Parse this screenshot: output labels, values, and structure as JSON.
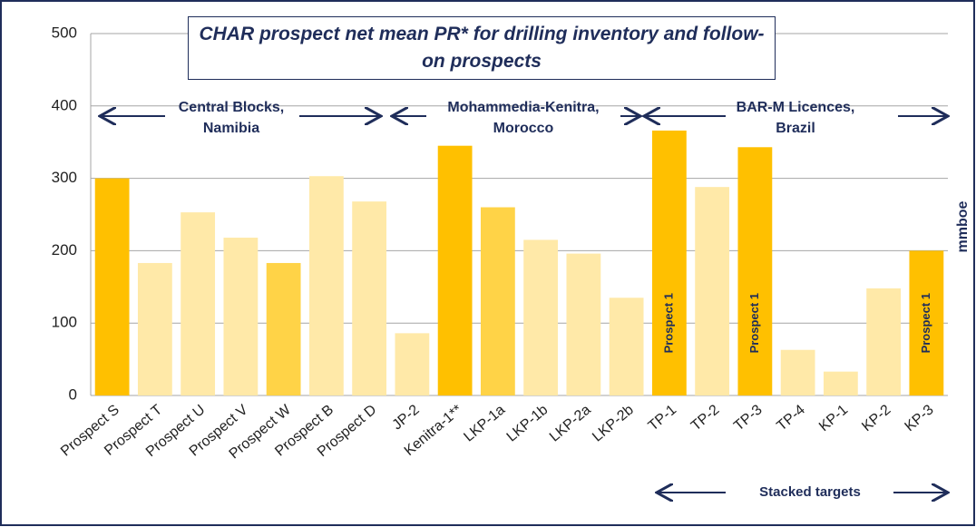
{
  "chart_data": {
    "type": "bar",
    "title": "CHAR prospect net mean PR* for drilling inventory and follow-on prospects",
    "y_label": "mmboe",
    "categories": [
      "Prospect S",
      "Prospect T",
      "Prospect U",
      "Prospect V",
      "Prospect W",
      "Prospect B",
      "Prospect D",
      "JP-2",
      "Kenitra-1**",
      "LKP-1a",
      "LKP-1b",
      "LKP-2a",
      "LKP-2b",
      "TP-1",
      "TP-2",
      "TP-3",
      "TP-4",
      "KP-1",
      "KP-2",
      "KP-3"
    ],
    "values": [
      300,
      183,
      253,
      218,
      183,
      303,
      268,
      86,
      345,
      260,
      215,
      196,
      135,
      366,
      288,
      343,
      63,
      33,
      148,
      200
    ],
    "colors": [
      "#ffc000",
      "#ffe9a8",
      "#ffe9a8",
      "#ffe9a8",
      "#ffd347",
      "#ffe9a8",
      "#ffe9a8",
      "#ffe9a8",
      "#ffc000",
      "#ffd347",
      "#ffe9a8",
      "#ffe9a8",
      "#ffe9a8",
      "#ffc000",
      "#ffe9a8",
      "#ffc000",
      "#ffe9a8",
      "#ffe9a8",
      "#ffe9a8",
      "#ffc000"
    ],
    "bar_labels": [
      null,
      null,
      null,
      null,
      null,
      null,
      null,
      null,
      null,
      null,
      null,
      null,
      null,
      "Prospect 1",
      null,
      "Prospect 1",
      null,
      null,
      null,
      "Prospect 1"
    ],
    "regions": [
      {
        "label": [
          "Central Blocks,",
          "Namibia"
        ]
      },
      {
        "label": [
          "Mohammedia-Kenitra,",
          "Morocco"
        ]
      },
      {
        "label": [
          "BAR-M Licences,",
          "Brazil"
        ]
      }
    ],
    "footnote": "Stacked targets",
    "ylim": [
      0,
      500
    ],
    "yticks": [
      0,
      100,
      200,
      300,
      400,
      500
    ],
    "grid": true
  }
}
